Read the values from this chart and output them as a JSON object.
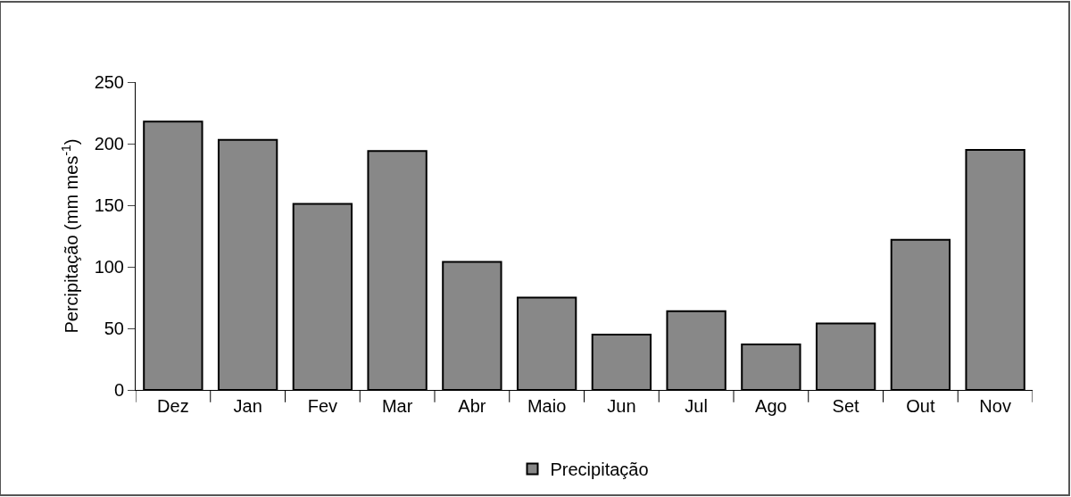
{
  "chart_data": {
    "type": "bar",
    "ylabel": "Percipitação (mm mes$^{-1}$)",
    "categories": [
      "Dez",
      "Jan",
      "Fev",
      "Mar",
      "Abr",
      "Maio",
      "Jun",
      "Jul",
      "Ago",
      "Set",
      "Out",
      "Nov"
    ],
    "series": [
      {
        "name": "Precipitação",
        "color": "#888888",
        "values": [
          218,
          203,
          151,
          194,
          104,
          75,
          45,
          64,
          37,
          54,
          122,
          195
        ]
      }
    ],
    "ylim": [
      0,
      250
    ],
    "yticks": [
      0,
      50,
      100,
      150,
      200,
      250
    ],
    "grid": false,
    "legend": "bottom"
  }
}
